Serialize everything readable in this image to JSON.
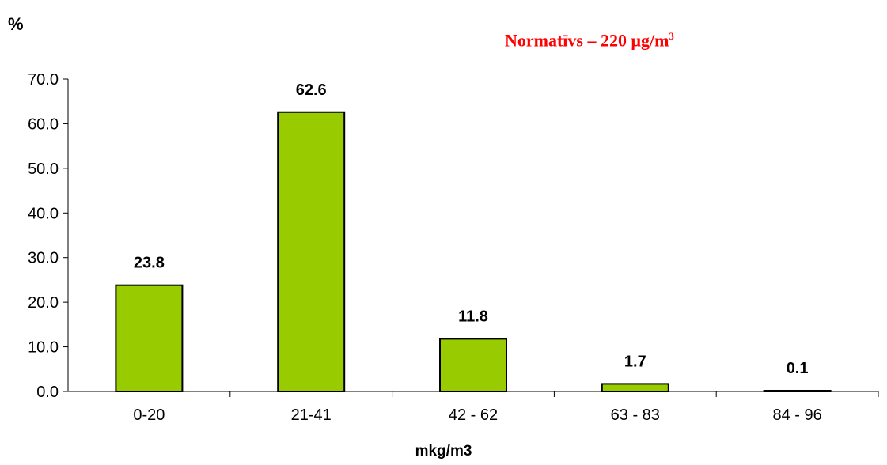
{
  "chart_data": {
    "type": "bar",
    "categories": [
      "0-20",
      "21-41",
      "42 - 62",
      "63 - 83",
      "84 - 96"
    ],
    "values": [
      23.8,
      62.6,
      11.8,
      1.7,
      0.1
    ],
    "data_labels": [
      "23.8",
      "62.6",
      "11.8",
      "1.7",
      "0.1"
    ],
    "ylabel": "%",
    "xlabel": "mkg/m3",
    "ylim": [
      0,
      70
    ],
    "yticks": [
      "0.0",
      "10.0",
      "20.0",
      "30.0",
      "40.0",
      "50.0",
      "60.0",
      "70.0"
    ],
    "annotation": {
      "text": "Normatīvs – 220 μg/m",
      "superscript": "3"
    },
    "bar_color": "#99cc00",
    "annotation_color": "#ff0000",
    "grid": false,
    "legend": "none"
  }
}
